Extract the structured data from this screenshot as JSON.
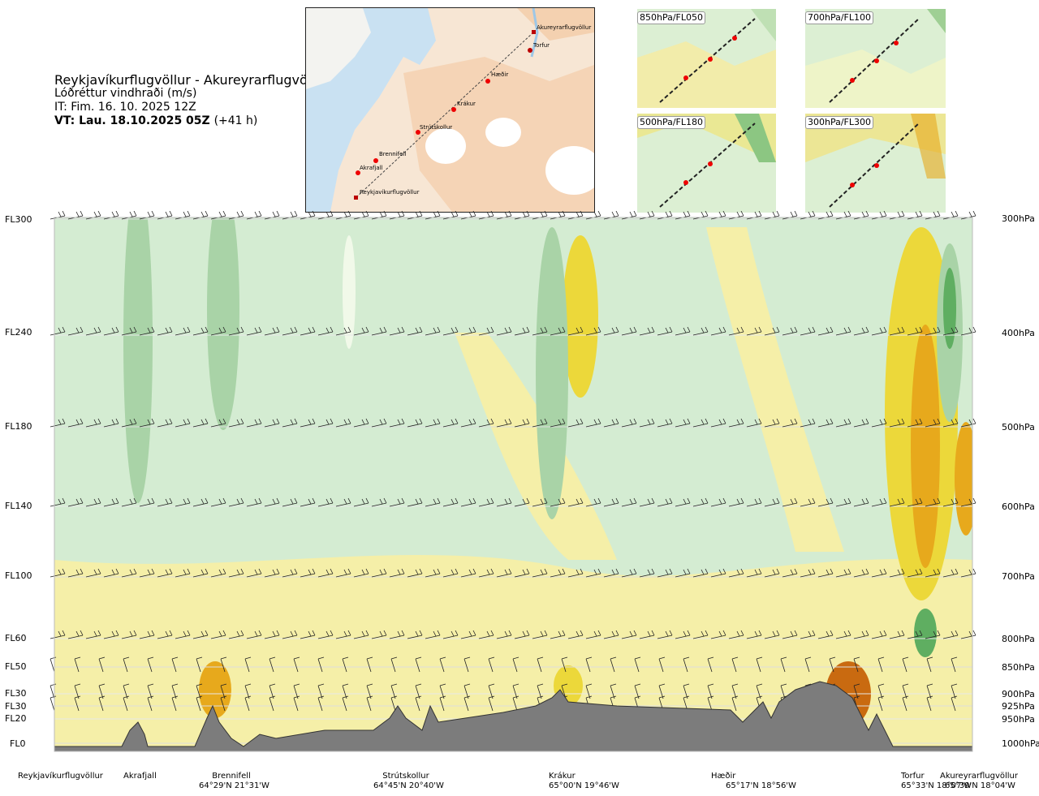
{
  "header": {
    "route": "Reykjavíkurflugvöllur - Akureyrarflugvöllur",
    "variable": "Lóðréttur vindhraði (m/s)",
    "it_line": "IT: Fim. 16. 10. 2025 12Z",
    "vt_bold": "VT: Lau. 18.10.2025 05Z",
    "vt_offset": "(+41 h)"
  },
  "route_map": {
    "waypoints": [
      {
        "label": "Akureyrarflugvöllur"
      },
      {
        "label": "Torfur"
      },
      {
        "label": "Hæðir"
      },
      {
        "label": "Krákur"
      },
      {
        "label": "Strútskollur"
      },
      {
        "label": "Brennifell"
      },
      {
        "label": "Akrafjall"
      },
      {
        "label": "Reykjavíkurflugvöllur"
      }
    ]
  },
  "level_maps": [
    {
      "label": "850hPa/FL050"
    },
    {
      "label": "700hPa/FL100"
    },
    {
      "label": "500hPa/FL180"
    },
    {
      "label": "300hPa/FL300"
    }
  ],
  "chart_data": {
    "type": "heatmap",
    "title": "Lóðréttur vindhraði (m/s)",
    "levels_left": [
      "FL300",
      "FL240",
      "FL180",
      "FL140",
      "FL100",
      "FL60",
      "FL50",
      "FL30",
      "FL30",
      "FL20",
      "FL0"
    ],
    "levels_right": [
      "300hPa",
      "400hPa",
      "500hPa",
      "600hPa",
      "700hPa",
      "800hPa",
      "850hPa",
      "900hPa",
      "925hPa",
      "950hPa",
      "1000hPa"
    ],
    "pressure_levels_hpa": [
      300,
      400,
      500,
      600,
      700,
      800,
      850,
      900,
      925,
      950,
      1000
    ],
    "locations": [
      {
        "name": "Reykjavíkurflugvöllur",
        "coord": ""
      },
      {
        "name": "Akrafjall",
        "coord": ""
      },
      {
        "name": "Brennifell",
        "coord": "64°29'N 21°31'W"
      },
      {
        "name": "Strútskollur",
        "coord": "64°45'N 20°40'W"
      },
      {
        "name": "Krákur",
        "coord": "65°00'N 19°46'W"
      },
      {
        "name": "Hæðir",
        "coord": "65°17'N 18°56'W"
      },
      {
        "name": "Torfur",
        "coord": "65°33'N 18°07'W"
      },
      {
        "name": "Akureyrarflugvöllur",
        "coord": "65°39'N 18°04'W"
      }
    ],
    "colors": {
      "strong_down_dark": "#5fae61",
      "down_medium": "#a9d3a7",
      "down_weak": "#d4ecd2",
      "near_zero": "#f1f9e9",
      "up_weak": "#f5efa8",
      "up_medium": "#ecd83a",
      "up_strong": "#e7a91c",
      "up_very_strong": "#c96a10",
      "terrain": "#7c7c7c"
    }
  }
}
